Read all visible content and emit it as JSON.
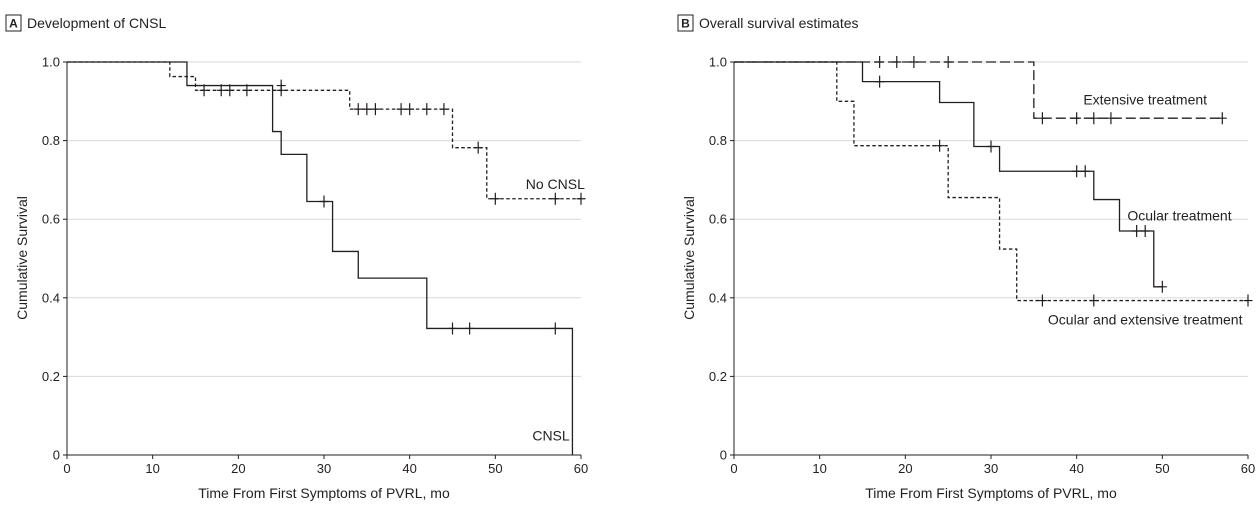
{
  "chart_data": [
    {
      "type": "line",
      "panel": "A",
      "title": "Development of CNSL",
      "xlabel": "Time From First Symptoms of PVRL, mo",
      "ylabel": "Cumulative Survival",
      "xlim": [
        0,
        60
      ],
      "ylim": [
        0,
        1.0
      ],
      "xticks": [
        0,
        10,
        20,
        30,
        40,
        50,
        60
      ],
      "xtick_labels": [
        "0",
        "10",
        "20",
        "30",
        "40",
        "50",
        "60"
      ],
      "yticks": [
        0,
        0.2,
        0.4,
        0.6,
        0.8,
        1.0
      ],
      "ytick_labels": [
        "0",
        "0.2",
        "0.4",
        "0.6",
        "0.8",
        "1.0"
      ],
      "grid": "horizontal",
      "step": true,
      "series": [
        {
          "name": "No CNSL",
          "line_style": "dashed",
          "label_at": [
            57,
            0.69
          ],
          "steps": [
            [
              0,
              1.0
            ],
            [
              12,
              0.963
            ],
            [
              15,
              0.928
            ],
            [
              33,
              0.88
            ],
            [
              45,
              0.782
            ],
            [
              49,
              0.652
            ],
            [
              60,
              0.652
            ]
          ],
          "censored": [
            [
              16,
              0.928
            ],
            [
              18,
              0.928
            ],
            [
              19,
              0.928
            ],
            [
              21,
              0.928
            ],
            [
              25,
              0.928
            ],
            [
              34,
              0.88
            ],
            [
              35,
              0.88
            ],
            [
              36,
              0.88
            ],
            [
              39,
              0.88
            ],
            [
              40,
              0.88
            ],
            [
              42,
              0.88
            ],
            [
              44,
              0.88
            ],
            [
              48,
              0.782
            ],
            [
              50,
              0.652
            ],
            [
              57,
              0.652
            ],
            [
              60,
              0.652
            ]
          ]
        },
        {
          "name": "CNSL",
          "line_style": "solid",
          "label_at": [
            56.5,
            0.05
          ],
          "steps": [
            [
              0,
              1.0
            ],
            [
              14,
              0.94
            ],
            [
              24,
              0.823
            ],
            [
              25,
              0.765
            ],
            [
              28,
              0.645
            ],
            [
              31,
              0.518
            ],
            [
              34,
              0.45
            ],
            [
              42,
              0.322
            ],
            [
              59,
              0.0
            ]
          ],
          "censored": [
            [
              25,
              0.94
            ],
            [
              30,
              0.645
            ],
            [
              45,
              0.322
            ],
            [
              47,
              0.322
            ],
            [
              57,
              0.322
            ]
          ]
        }
      ]
    },
    {
      "type": "line",
      "panel": "B",
      "title": "Overall survival estimates",
      "xlabel": "Time From First Symptoms of PVRL, mo",
      "ylabel": "Cumulative Survival",
      "xlim": [
        0,
        60
      ],
      "ylim": [
        0,
        1.0
      ],
      "xticks": [
        0,
        10,
        20,
        30,
        40,
        50,
        60
      ],
      "xtick_labels": [
        "0",
        "10",
        "20",
        "30",
        "40",
        "50",
        "60"
      ],
      "yticks": [
        0,
        0.2,
        0.4,
        0.6,
        0.8,
        1.0
      ],
      "ytick_labels": [
        "0",
        "0.2",
        "0.4",
        "0.6",
        "0.8",
        "1.0"
      ],
      "grid": "horizontal",
      "step": true,
      "series": [
        {
          "name": "Extensive treatment",
          "line_style": "long-dashed",
          "label_at": [
            48,
            0.905
          ],
          "steps": [
            [
              0,
              1.0
            ],
            [
              35,
              0.857
            ],
            [
              57,
              0.857
            ]
          ],
          "censored": [
            [
              17,
              1.0
            ],
            [
              19,
              1.0
            ],
            [
              21,
              1.0
            ],
            [
              25,
              1.0
            ],
            [
              36,
              0.857
            ],
            [
              40,
              0.857
            ],
            [
              42,
              0.857
            ],
            [
              44,
              0.857
            ],
            [
              57,
              0.857
            ]
          ]
        },
        {
          "name": "Ocular treatment",
          "line_style": "solid",
          "label_at": [
            52,
            0.61
          ],
          "steps": [
            [
              0,
              1.0
            ],
            [
              15,
              0.95
            ],
            [
              24,
              0.897
            ],
            [
              28,
              0.785
            ],
            [
              31,
              0.722
            ],
            [
              42,
              0.65
            ],
            [
              45,
              0.57
            ],
            [
              49,
              0.428
            ],
            [
              50,
              0.428
            ]
          ],
          "censored": [
            [
              17,
              0.95
            ],
            [
              30,
              0.785
            ],
            [
              40,
              0.722
            ],
            [
              41,
              0.722
            ],
            [
              47,
              0.57
            ],
            [
              48,
              0.57
            ],
            [
              50,
              0.428
            ]
          ]
        },
        {
          "name": "Ocular and extensive treatment",
          "line_style": "dashed",
          "label_at": [
            48,
            0.345
          ],
          "steps": [
            [
              0,
              1.0
            ],
            [
              12,
              0.9
            ],
            [
              14,
              0.787
            ],
            [
              25,
              0.655
            ],
            [
              31,
              0.524
            ],
            [
              33,
              0.393
            ],
            [
              60,
              0.393
            ]
          ],
          "censored": [
            [
              24,
              0.787
            ],
            [
              36,
              0.393
            ],
            [
              42,
              0.393
            ],
            [
              60,
              0.393
            ]
          ]
        }
      ]
    }
  ]
}
